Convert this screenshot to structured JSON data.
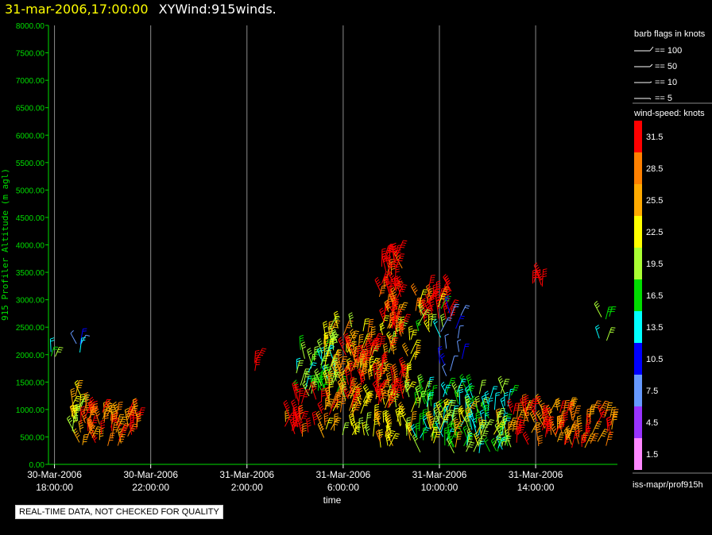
{
  "header": {
    "date": "31-mar-2006,17:00:00",
    "title": "XYWind:915winds."
  },
  "notice": "REAL-TIME DATA, NOT CHECKED FOR QUALITY",
  "legend": {
    "barb_title": "barb flags in knots",
    "barbs": [
      "== 100",
      "== 50",
      "== 10",
      "== 5"
    ],
    "speed_title": "wind-speed: knots",
    "colorbar": [
      {
        "label": "31.5",
        "color": "#ff0000"
      },
      {
        "label": "28.5",
        "color": "#ff8000"
      },
      {
        "label": "25.5",
        "color": "#ffaa00"
      },
      {
        "label": "22.5",
        "color": "#ffff00"
      },
      {
        "label": "19.5",
        "color": "#aaff33"
      },
      {
        "label": "16.5",
        "color": "#00dd00"
      },
      {
        "label": "13.5",
        "color": "#00ffff"
      },
      {
        "label": "10.5",
        "color": "#0000ff"
      },
      {
        "label": "7.5",
        "color": "#6699ff"
      },
      {
        "label": "4.5",
        "color": "#9933ff"
      },
      {
        "label": "1.5",
        "color": "#ff88ff"
      }
    ],
    "footer": "iss-mapr/prof915h"
  },
  "chart_data": {
    "type": "scatter",
    "title": "XYWind:915winds.",
    "xlabel": "time",
    "ylabel": "915 Profiler Altitude (m agl)",
    "ylim": [
      0,
      8000
    ],
    "yticks": [
      "0.00",
      "500.00",
      "1000.00",
      "1500.00",
      "2000.00",
      "2500.00",
      "3000.00",
      "3500.00",
      "4000.00",
      "4500.00",
      "5000.00",
      "5500.00",
      "6000.00",
      "6500.00",
      "7000.00",
      "7500.00",
      "8000.00"
    ],
    "xlim_hours": [
      -6.25,
      17.4
    ],
    "xtick_hours": [
      -6,
      -2,
      2,
      6,
      10,
      14
    ],
    "xticks": [
      [
        "30-Mar-2006",
        "18:00:00"
      ],
      [
        "30-Mar-2006",
        "22:00:00"
      ],
      [
        "31-Mar-2006",
        "2:00:00"
      ],
      [
        "31-Mar-2006",
        "6:00:00"
      ],
      [
        "31-Mar-2006",
        "10:00:00"
      ],
      [
        "31-Mar-2006",
        "14:00:00"
      ]
    ],
    "grid": "vertical",
    "wind_clusters": [
      {
        "t": [
          -6.2,
          -5.9
        ],
        "alt": [
          1950,
          2050
        ],
        "speed": 17,
        "n": 3
      },
      {
        "t": [
          -5.1,
          -4.9
        ],
        "alt": [
          1950,
          2200
        ],
        "speed": 10,
        "n": 4
      },
      {
        "t": [
          -5.3,
          -4.9
        ],
        "alt": [
          400,
          1300
        ],
        "speed": 22,
        "n": 18
      },
      {
        "t": [
          -4.9,
          -3.2
        ],
        "alt": [
          300,
          1000
        ],
        "speed": 28,
        "n": 45
      },
      {
        "t": [
          -3.0,
          -2.4
        ],
        "alt": [
          500,
          900
        ],
        "speed": 29,
        "n": 14
      },
      {
        "t": [
          2.3,
          2.5
        ],
        "alt": [
          1700,
          2000
        ],
        "speed": 30,
        "n": 3
      },
      {
        "t": [
          3.5,
          3.8
        ],
        "alt": [
          650,
          800
        ],
        "speed": 28,
        "n": 2
      },
      {
        "t": [
          4.0,
          5.8
        ],
        "alt": [
          1200,
          2300
        ],
        "speed": 17,
        "n": 50
      },
      {
        "t": [
          3.8,
          5.5
        ],
        "alt": [
          500,
          1200
        ],
        "speed": 32,
        "n": 25
      },
      {
        "t": [
          5.2,
          9.0
        ],
        "alt": [
          300,
          2500
        ],
        "speed": 24,
        "n": 170
      },
      {
        "t": [
          6.0,
          8.5
        ],
        "alt": [
          1000,
          2200
        ],
        "speed": 32,
        "n": 60
      },
      {
        "t": [
          7.5,
          8.5
        ],
        "alt": [
          2300,
          3800
        ],
        "speed": 32,
        "n": 45
      },
      {
        "t": [
          7.8,
          8.4
        ],
        "alt": [
          2300,
          2900
        ],
        "speed": 28,
        "n": 12
      },
      {
        "t": [
          9.0,
          10.6
        ],
        "alt": [
          2600,
          3200
        ],
        "speed": 32,
        "n": 30
      },
      {
        "t": [
          9.0,
          10.2
        ],
        "alt": [
          2400,
          2900
        ],
        "speed": 20,
        "n": 10
      },
      {
        "t": [
          10.0,
          11.0
        ],
        "alt": [
          1600,
          2900
        ],
        "speed": 10,
        "n": 14
      },
      {
        "t": [
          9.0,
          13.0
        ],
        "alt": [
          200,
          1400
        ],
        "speed": 16,
        "n": 110
      },
      {
        "t": [
          9.5,
          13.0
        ],
        "alt": [
          300,
          1000
        ],
        "speed": 22,
        "n": 40
      },
      {
        "t": [
          13.0,
          17.2
        ],
        "alt": [
          300,
          1000
        ],
        "speed": 29,
        "n": 90
      },
      {
        "t": [
          13.7,
          14.3
        ],
        "alt": [
          3200,
          3400
        ],
        "speed": 32,
        "n": 5
      },
      {
        "t": [
          16.6,
          17.1
        ],
        "alt": [
          2200,
          2700
        ],
        "speed": 17,
        "n": 5
      }
    ]
  }
}
